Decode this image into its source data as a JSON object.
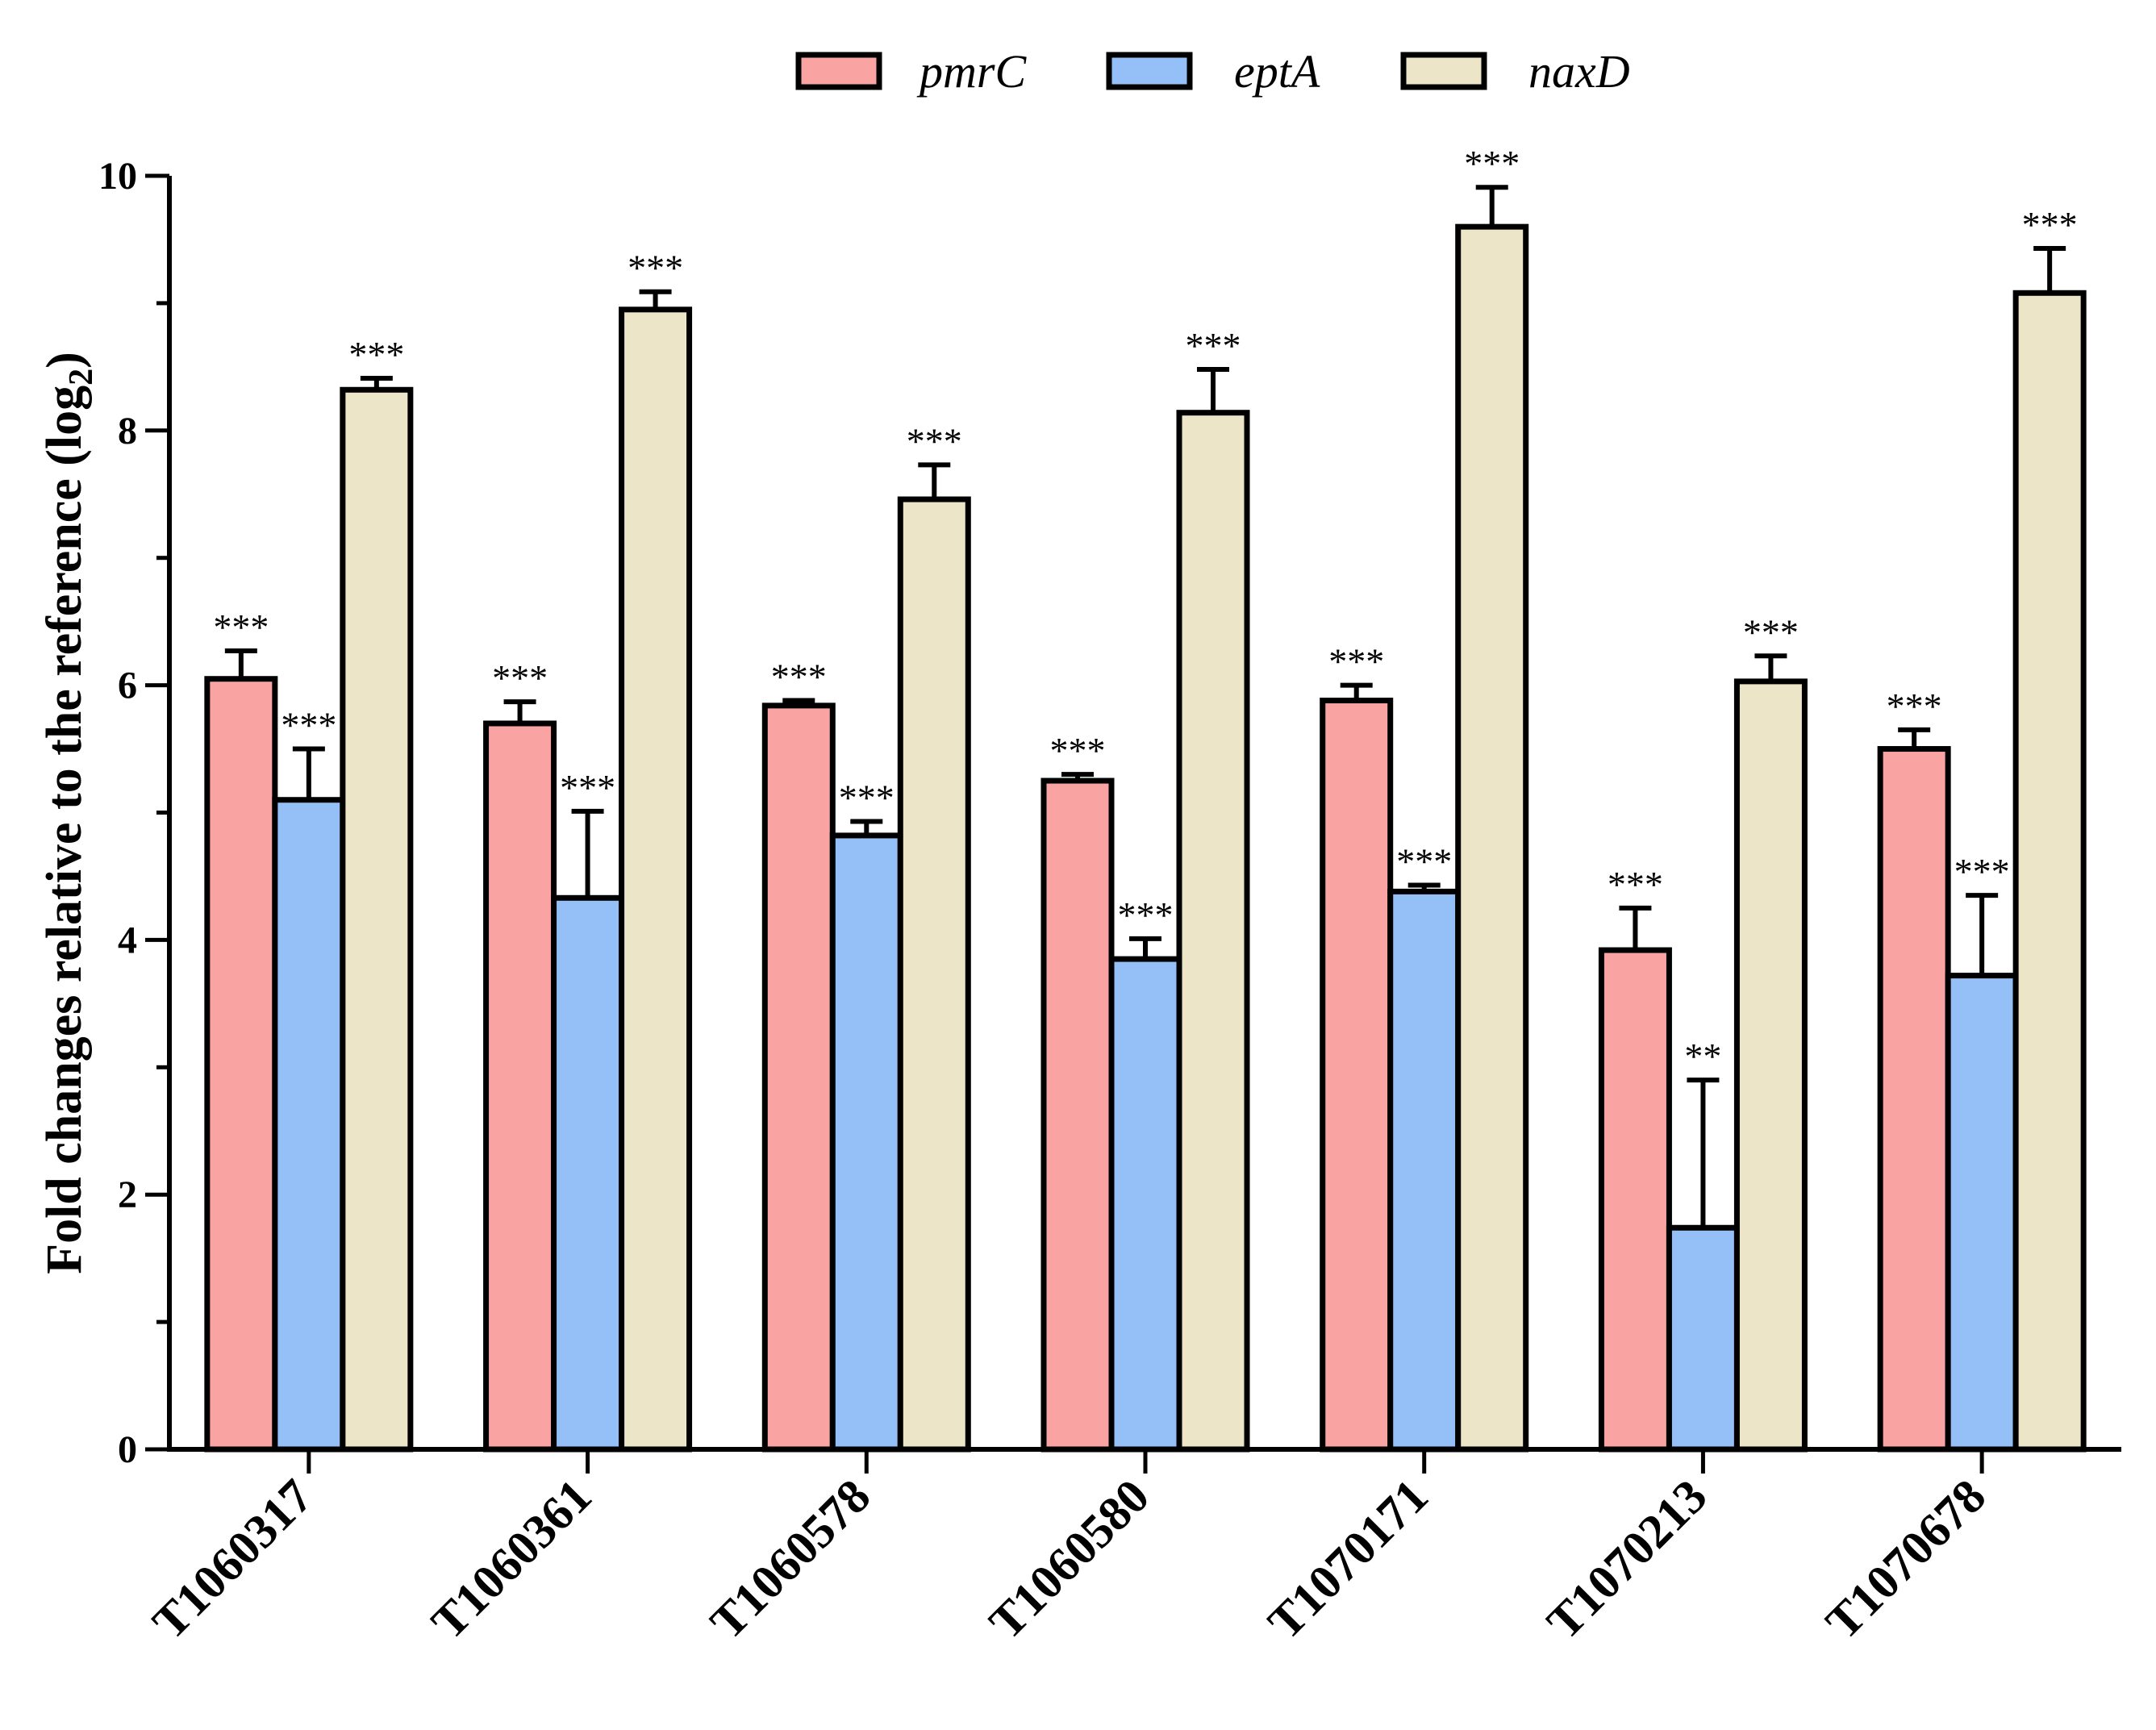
{
  "chart_data": {
    "type": "bar",
    "title": "",
    "xlabel": "",
    "ylabel": "Fold changes relative to the reference (log",
    "ylabel_sub": "2",
    "ylabel_close": ")",
    "ylim": [
      0,
      10
    ],
    "yticks": [
      0,
      2,
      4,
      6,
      8,
      10
    ],
    "ytick_labels": [
      "0",
      "2",
      "4",
      "6",
      "8",
      "10"
    ],
    "legend_position": "top-center",
    "categories": [
      "T1060317",
      "T1060361",
      "T1060578",
      "T1060580",
      "T1070171",
      "T1070213",
      "T1070678"
    ],
    "series": [
      {
        "name": "pmrC",
        "color": "#F9A3A3",
        "values": [
          6.05,
          5.7,
          5.84,
          5.25,
          5.88,
          3.92,
          5.5
        ],
        "errors": [
          0.22,
          0.17,
          0.04,
          0.05,
          0.12,
          0.33,
          0.15
        ],
        "sig": [
          "***",
          "***",
          "***",
          "***",
          "***",
          "***",
          "***"
        ]
      },
      {
        "name": "eptA",
        "color": "#95BFF7",
        "values": [
          5.1,
          4.33,
          4.82,
          3.85,
          4.38,
          1.74,
          3.72
        ],
        "errors": [
          0.4,
          0.68,
          0.11,
          0.16,
          0.05,
          1.16,
          0.63
        ],
        "sig": [
          "***",
          "***",
          "***",
          "***",
          "***",
          "**",
          "***"
        ]
      },
      {
        "name": "naxD",
        "color": "#ECE5C8",
        "values": [
          8.32,
          8.95,
          7.46,
          8.14,
          9.6,
          6.03,
          9.08
        ],
        "errors": [
          0.09,
          0.14,
          0.27,
          0.34,
          0.31,
          0.2,
          0.35
        ],
        "sig": [
          "***",
          "***",
          "***",
          "***",
          "***",
          "***",
          "***"
        ]
      }
    ]
  }
}
